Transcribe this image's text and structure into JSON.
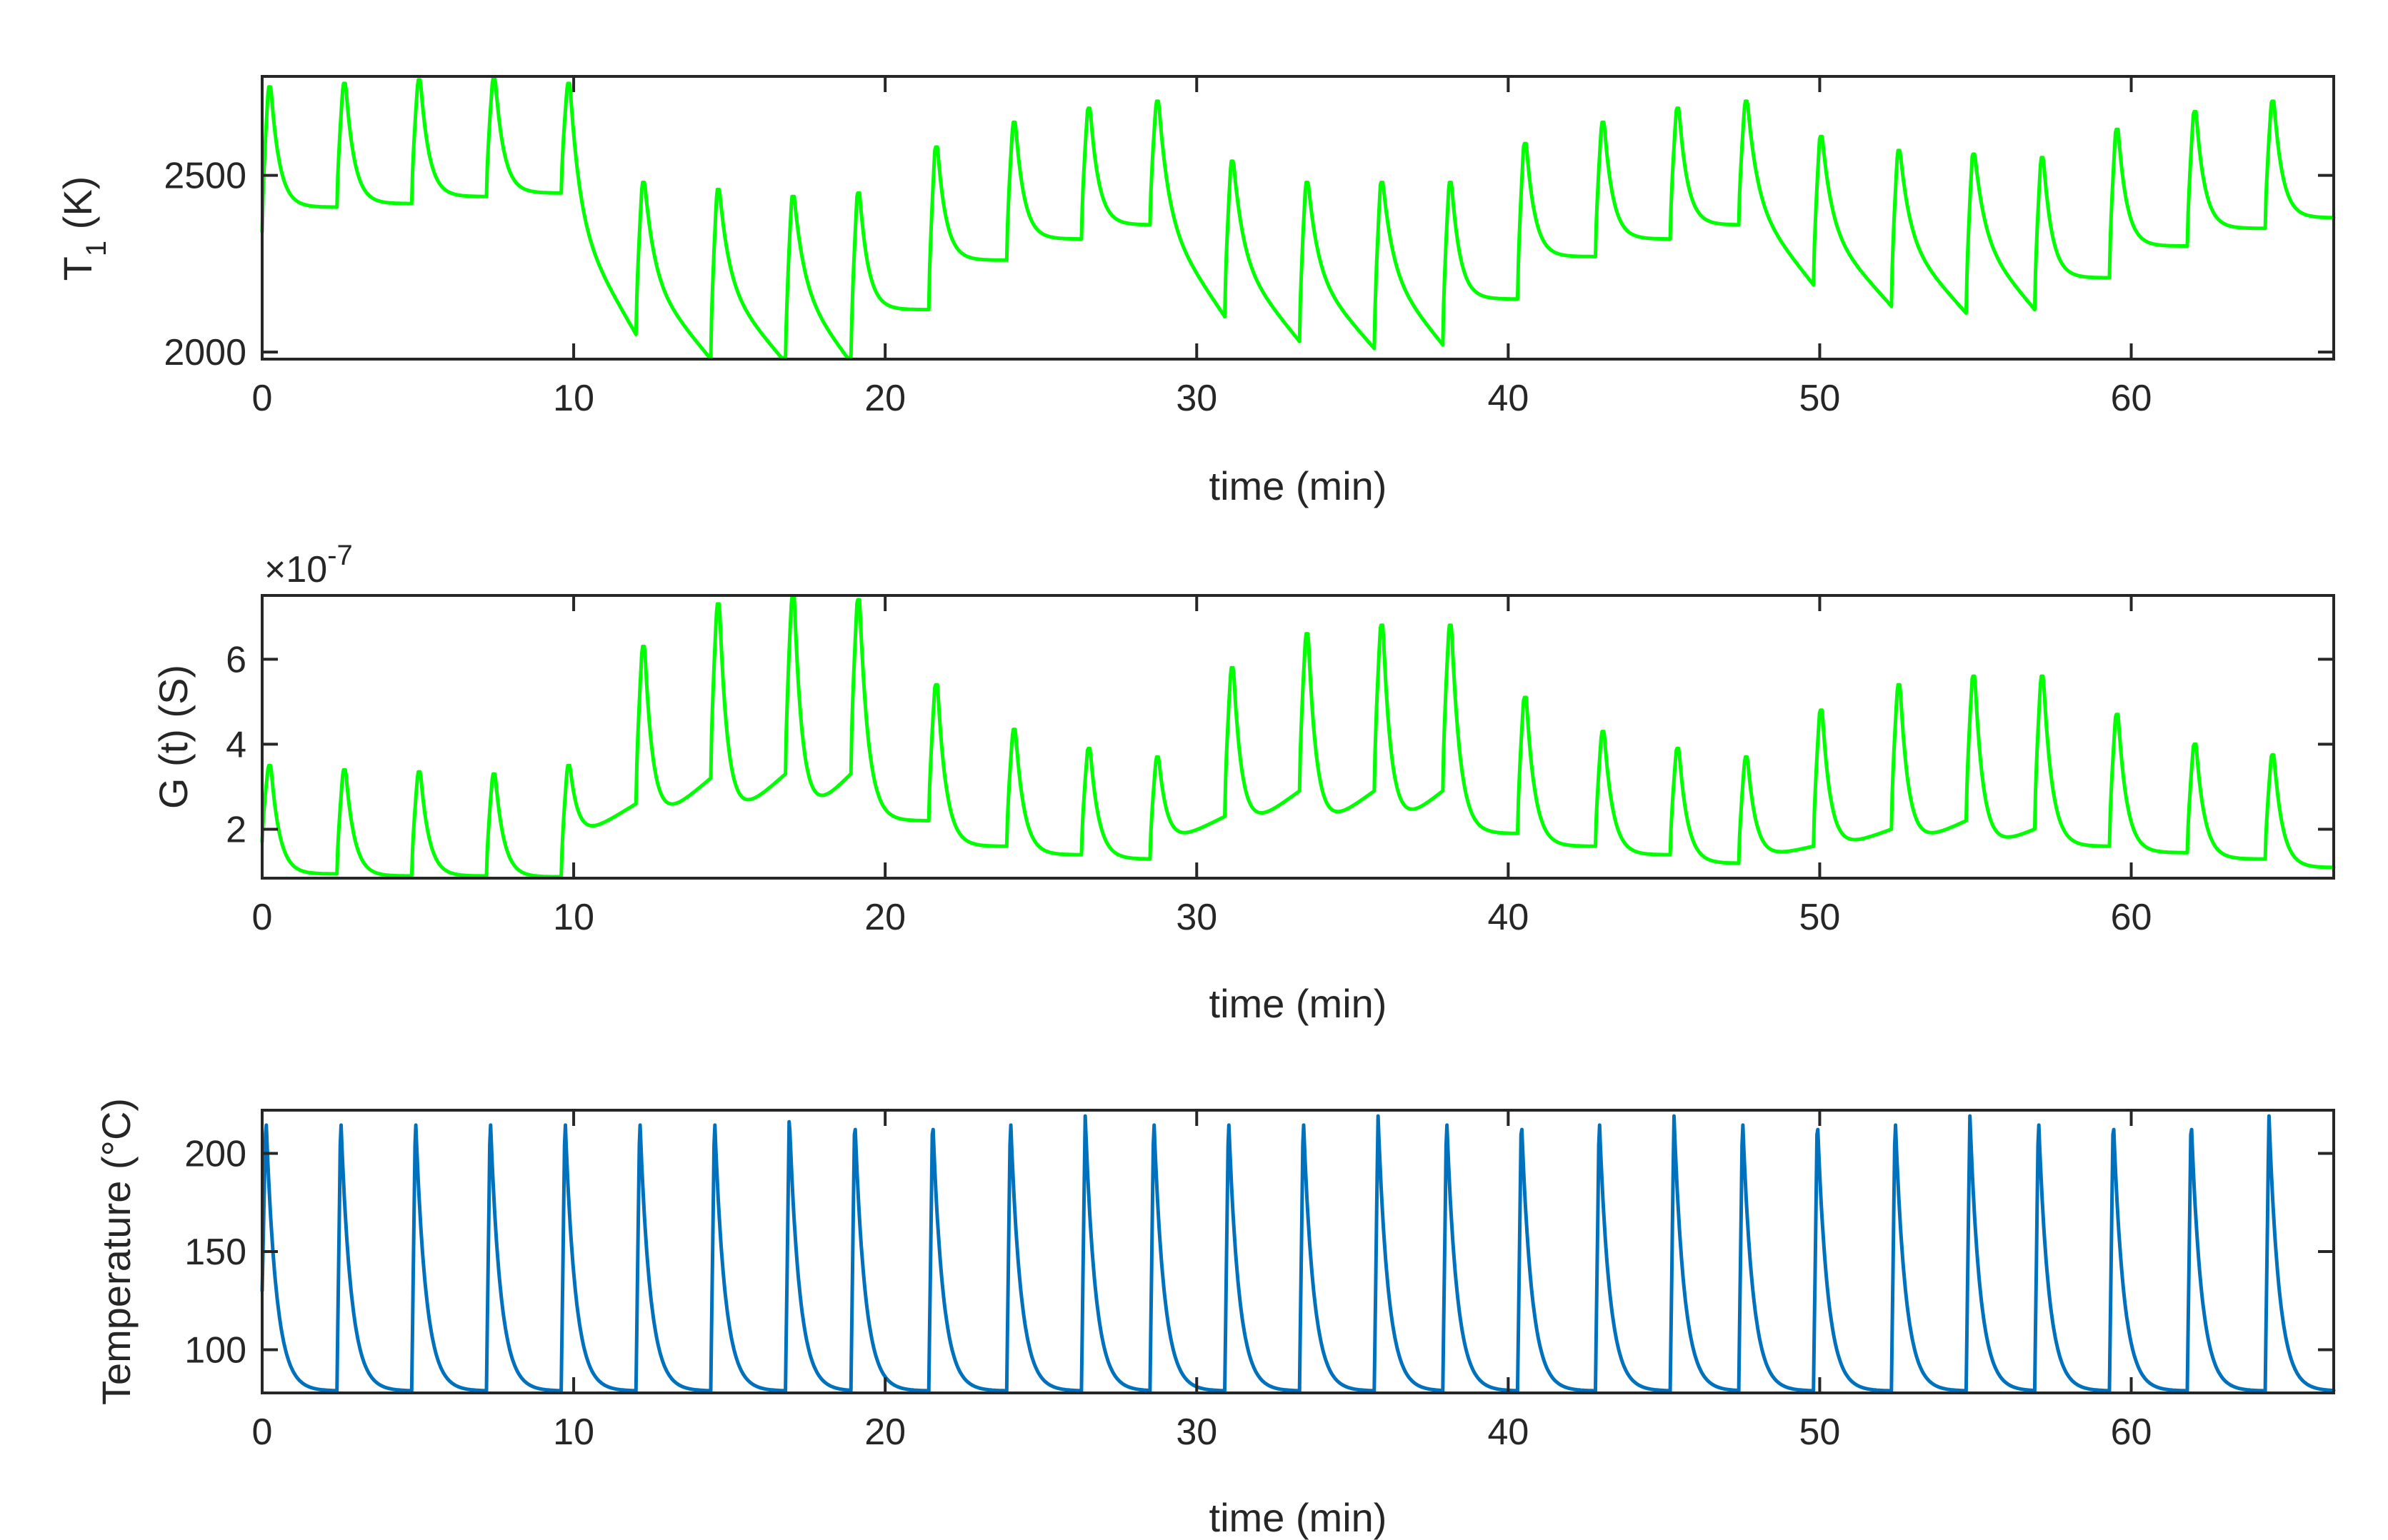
{
  "chart_data": [
    {
      "type": "line",
      "xlabel": "time (min)",
      "ylabel_main": "T",
      "ylabel_sub": "1",
      "ylabel_tail": " (K)",
      "xlim": [
        0,
        66.5
      ],
      "ylim": [
        1980,
        2780
      ],
      "xticks": [
        0,
        10,
        20,
        30,
        40,
        50,
        60
      ],
      "xtick_labels": [
        "0",
        "10",
        "20",
        "30",
        "40",
        "50",
        "60"
      ],
      "yticks": [
        2000,
        2500
      ],
      "ytick_labels": [
        "2000",
        "2500"
      ],
      "color": "#00ff00",
      "series": [
        {
          "name": "T1",
          "period_starts": [
            0,
            2.4,
            4.8,
            7.2,
            9.6,
            12.0,
            14.4,
            16.8,
            18.9,
            21.4,
            23.9,
            26.3,
            28.5,
            30.9,
            33.3,
            35.7,
            37.9,
            40.3,
            42.8,
            45.2,
            47.4,
            49.8,
            52.3,
            54.7,
            56.9,
            59.3,
            61.8,
            64.3
          ],
          "peaks": [
            2750,
            2760,
            2770,
            2775,
            2760,
            2480,
            2460,
            2440,
            2450,
            2580,
            2650,
            2690,
            2710,
            2540,
            2480,
            2480,
            2480,
            2590,
            2650,
            2690,
            2710,
            2610,
            2570,
            2560,
            2550,
            2630,
            2680,
            2710
          ],
          "ends": [
            2410,
            2420,
            2440,
            2450,
            2050,
            1980,
            1970,
            1970,
            2120,
            2260,
            2320,
            2360,
            2100,
            2030,
            2010,
            2020,
            2150,
            2270,
            2320,
            2360,
            2190,
            2130,
            2110,
            2120,
            2210,
            2300,
            2350,
            2380
          ],
          "shape": [
            "flat",
            "flat",
            "flat",
            "flat",
            "decay",
            "decay",
            "decay",
            "decay",
            "flat",
            "flat",
            "flat",
            "flat",
            "decay",
            "decay",
            "decay",
            "decay",
            "flat",
            "flat",
            "flat",
            "flat",
            "decay",
            "decay",
            "decay",
            "decay",
            "flat",
            "flat",
            "flat",
            "flat"
          ],
          "start_value": 2340
        }
      ]
    },
    {
      "type": "line",
      "xlabel": "time (min)",
      "ylabel": "G (t) (S)",
      "exponent_prefix": "×10",
      "exponent_power": "-7",
      "xlim": [
        0,
        66.5
      ],
      "ylim": [
        0.85,
        7.5
      ],
      "xticks": [
        0,
        10,
        20,
        30,
        40,
        50,
        60
      ],
      "xtick_labels": [
        "0",
        "10",
        "20",
        "30",
        "40",
        "50",
        "60"
      ],
      "yticks": [
        2,
        4,
        6
      ],
      "ytick_labels": [
        "2",
        "4",
        "6"
      ],
      "color": "#00ff00",
      "series": [
        {
          "name": "G(t)",
          "period_starts": [
            0,
            2.4,
            4.8,
            7.2,
            9.6,
            12.0,
            14.4,
            16.8,
            18.9,
            21.4,
            23.9,
            26.3,
            28.5,
            30.9,
            33.3,
            35.7,
            37.9,
            40.3,
            42.8,
            45.2,
            47.4,
            49.8,
            52.3,
            54.7,
            56.9,
            59.3,
            61.8,
            64.3
          ],
          "peaks": [
            3.5,
            3.4,
            3.35,
            3.3,
            3.5,
            6.3,
            7.3,
            7.5,
            7.4,
            5.4,
            4.35,
            3.9,
            3.7,
            5.8,
            6.6,
            6.8,
            6.8,
            5.1,
            4.3,
            3.9,
            3.7,
            4.8,
            5.4,
            5.6,
            5.6,
            4.7,
            4.0,
            3.75
          ],
          "ends": [
            0.95,
            0.9,
            0.9,
            0.88,
            2.6,
            3.2,
            3.3,
            3.3,
            2.2,
            1.6,
            1.4,
            1.3,
            2.3,
            2.9,
            2.9,
            2.9,
            1.9,
            1.6,
            1.4,
            1.2,
            1.6,
            2.0,
            2.2,
            2.0,
            1.6,
            1.45,
            1.3,
            1.1
          ],
          "shape": [
            "flat",
            "flat",
            "flat",
            "flat",
            "rise",
            "rise",
            "rise",
            "rise",
            "flat",
            "flat",
            "flat",
            "flat",
            "rise",
            "rise",
            "rise",
            "rise",
            "flat",
            "flat",
            "flat",
            "flat",
            "rise",
            "rise",
            "rise",
            "rise",
            "flat",
            "flat",
            "flat",
            "flat"
          ],
          "start_value": 1.7
        }
      ]
    },
    {
      "type": "line",
      "xlabel": "time (min)",
      "ylabel": "Temperature (°C)",
      "xlim": [
        0,
        66.5
      ],
      "ylim": [
        78,
        222
      ],
      "xticks": [
        0,
        10,
        20,
        30,
        40,
        50,
        60
      ],
      "xtick_labels": [
        "0",
        "10",
        "20",
        "30",
        "40",
        "50",
        "60"
      ],
      "yticks": [
        100,
        150,
        200
      ],
      "ytick_labels": [
        "100",
        "150",
        "200"
      ],
      "color": "#0072bd",
      "series": [
        {
          "name": "Temperature",
          "period_starts": [
            0,
            2.4,
            4.8,
            7.2,
            9.6,
            12.0,
            14.4,
            16.8,
            18.9,
            21.4,
            23.9,
            26.3,
            28.5,
            30.9,
            33.3,
            35.7,
            37.9,
            40.3,
            42.8,
            45.2,
            47.4,
            49.8,
            52.3,
            54.7,
            56.9,
            59.3,
            61.8,
            64.3
          ],
          "peak": 220,
          "base": 79,
          "start_value": 130
        }
      ]
    }
  ]
}
